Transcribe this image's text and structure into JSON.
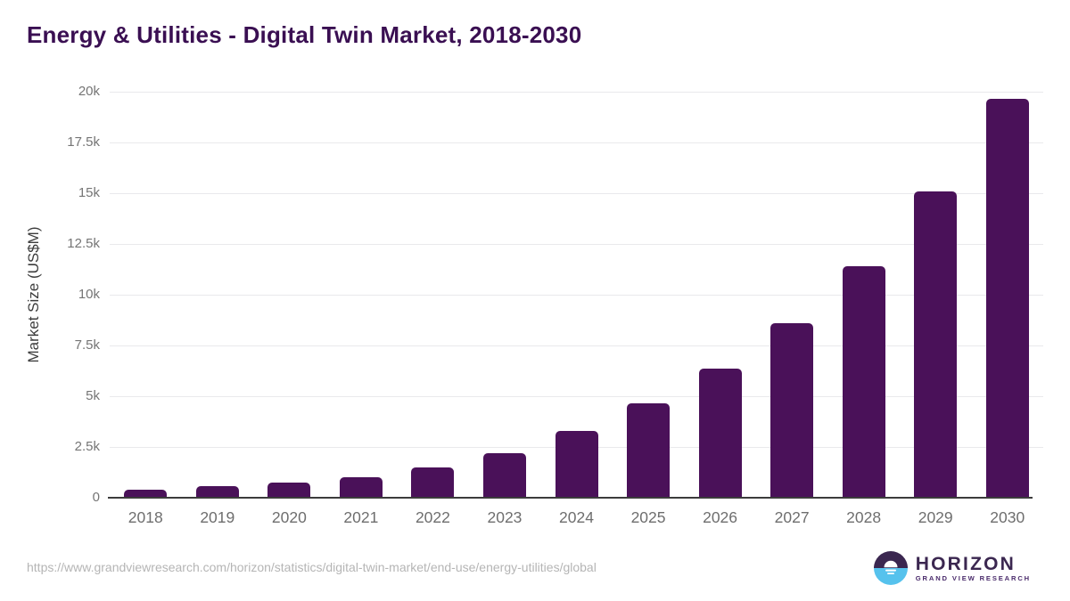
{
  "header": {
    "title": "Energy & Utilities - Digital Twin Market, 2018-2030"
  },
  "chart_data": {
    "type": "bar",
    "title": "Energy & Utilities - Digital Twin Market, 2018-2030",
    "xlabel": "",
    "ylabel": "Market Size (US$M)",
    "unit": "US$M",
    "categories": [
      "2018",
      "2019",
      "2020",
      "2021",
      "2022",
      "2023",
      "2024",
      "2025",
      "2026",
      "2027",
      "2028",
      "2029",
      "2030"
    ],
    "values": [
      400,
      550,
      750,
      1020,
      1470,
      2190,
      3270,
      4640,
      6340,
      8610,
      11420,
      15100,
      19630
    ],
    "ylim": [
      0,
      20000
    ],
    "yticks": [
      {
        "value": 0,
        "label": "0"
      },
      {
        "value": 2500,
        "label": "2.5k"
      },
      {
        "value": 5000,
        "label": "5k"
      },
      {
        "value": 7500,
        "label": "7.5k"
      },
      {
        "value": 10000,
        "label": "10k"
      },
      {
        "value": 12500,
        "label": "12.5k"
      },
      {
        "value": 15000,
        "label": "15k"
      },
      {
        "value": 17500,
        "label": "17.5k"
      },
      {
        "value": 20000,
        "label": "20k"
      }
    ],
    "grid": "horizontal",
    "legend": "none",
    "bar_color": "#4A1159"
  },
  "footer": {
    "source_url": "https://www.grandviewresearch.com/horizon/statistics/digital-twin-market/end-use/energy-utilities/global",
    "logo": {
      "wordmark": "HORIZON",
      "subtitle": "GRAND VIEW RESEARCH"
    }
  },
  "colors": {
    "title": "#3A0F52",
    "bar": "#4A1159",
    "axis_line": "#3C3C3C",
    "gridline": "#E9E9EC",
    "tick_label": "#6E6E6E",
    "y_axis_title": "#3D3D3D",
    "source_url": "#B5B5B5",
    "logo_purple": "#3B2750",
    "logo_blue": "#56C2ED",
    "background": "#FFFFFF"
  }
}
